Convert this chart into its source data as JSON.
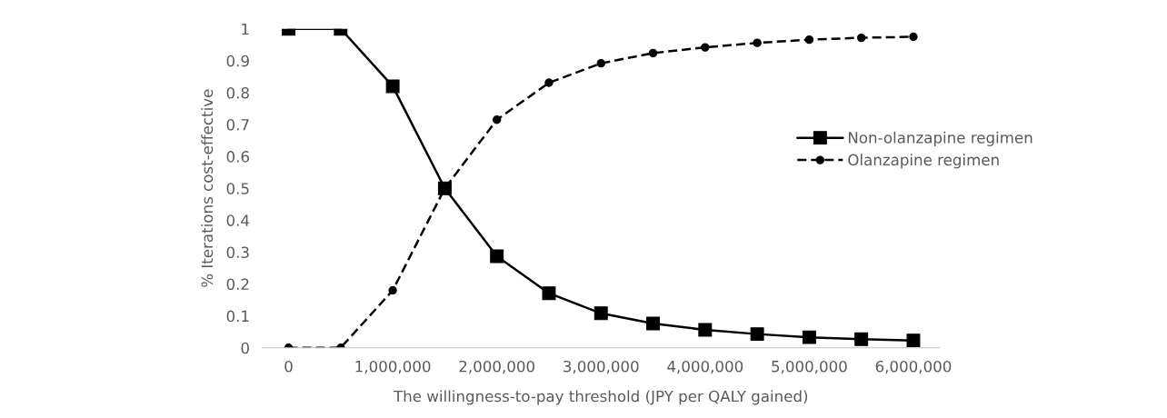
{
  "chart_data": {
    "type": "line",
    "xlabel": "The willingness-to-pay threshold (JPY per QALY gained)",
    "ylabel": "% Iterations cost-effective",
    "x": [
      0,
      500000,
      1000000,
      1500000,
      2000000,
      2500000,
      3000000,
      3500000,
      4000000,
      4500000,
      5000000,
      5500000,
      6000000
    ],
    "series": [
      {
        "name": "Non-olanzapine regimen",
        "color": "#000000",
        "marker": "square",
        "line_style": "solid",
        "values": [
          1,
          1,
          0.82,
          0.5,
          0.287,
          0.171,
          0.108,
          0.076,
          0.056,
          0.043,
          0.033,
          0.027,
          0.023
        ]
      },
      {
        "name": "Olanzapine regimen",
        "color": "#000000",
        "marker": "circle",
        "line_style": "dashed",
        "values": [
          0,
          0,
          0.18,
          0.5,
          0.715,
          0.831,
          0.892,
          0.924,
          0.942,
          0.956,
          0.966,
          0.972,
          0.975
        ]
      }
    ],
    "xlim": [
      -250000,
      6250000
    ],
    "xticks": [
      0,
      {
        "value": 1000000,
        "label": "1,000,000"
      },
      {
        "value": 2000000,
        "label": "2,000,000"
      },
      {
        "value": 3000000,
        "label": "3,000,000"
      },
      {
        "value": 4000000,
        "label": "4,000,000"
      },
      {
        "value": 5000000,
        "label": "5,000,000"
      },
      {
        "value": 6000000,
        "label": "6,000,000"
      }
    ],
    "ylim": [
      0,
      1
    ],
    "yticks": [
      0,
      0.1,
      0.2,
      0.3,
      0.4,
      0.5,
      0.6,
      0.7,
      0.8,
      0.9,
      1
    ],
    "grid": false,
    "legend": "right"
  }
}
